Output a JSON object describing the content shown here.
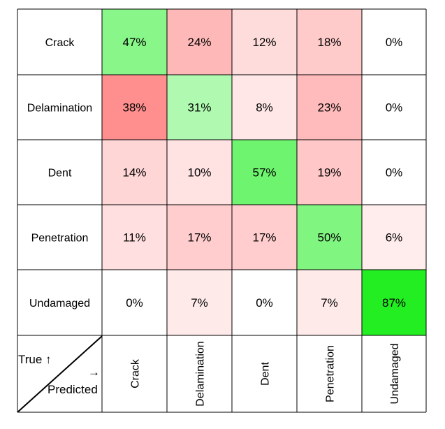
{
  "chart_data": {
    "type": "heatmap",
    "title": "",
    "row_axis_label": "True ↑",
    "col_axis_label": "Predicted",
    "col_arrow": "→",
    "rows": [
      "Crack",
      "Delamination",
      "Dent",
      "Penetration",
      "Undamaged"
    ],
    "cols": [
      "Crack",
      "Delamination",
      "Dent",
      "Penetration",
      "Undamaged"
    ],
    "values": [
      [
        47,
        24,
        12,
        18,
        0
      ],
      [
        38,
        31,
        8,
        23,
        0
      ],
      [
        14,
        10,
        57,
        19,
        0
      ],
      [
        11,
        17,
        17,
        50,
        6
      ],
      [
        0,
        7,
        0,
        7,
        87
      ]
    ],
    "value_suffix": "%",
    "colors": {
      "diagonal_max": "#22ee22",
      "off_diagonal_max": "#ff8f8f",
      "grid": "#000000",
      "background": "#ffffff"
    }
  }
}
